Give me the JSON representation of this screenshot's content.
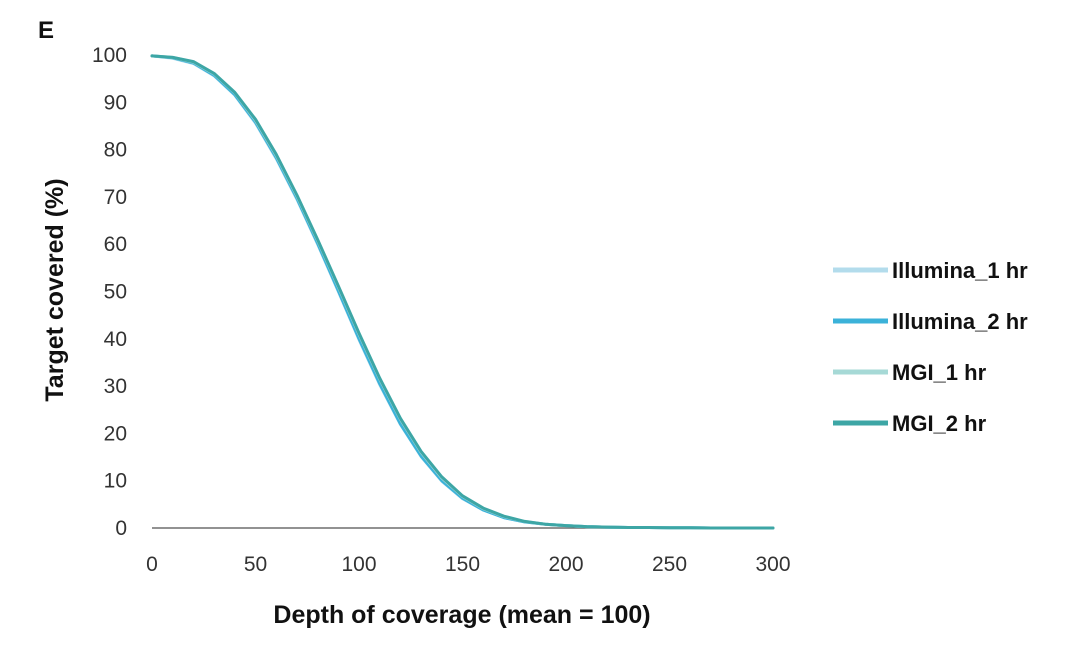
{
  "panel_label": "E",
  "chart_data": {
    "type": "line",
    "title": "",
    "xlabel": "Depth of coverage (mean = 100)",
    "ylabel": "Target covered (%)",
    "xlim": [
      0,
      300
    ],
    "ylim": [
      0,
      100
    ],
    "xticks": [
      "0",
      "50",
      "100",
      "150",
      "200",
      "250",
      "300"
    ],
    "yticks": [
      "0",
      "10",
      "20",
      "30",
      "40",
      "50",
      "60",
      "70",
      "80",
      "90",
      "100"
    ],
    "grid": false,
    "legend_position": "right",
    "x": [
      0,
      10,
      20,
      30,
      40,
      50,
      60,
      70,
      80,
      90,
      100,
      110,
      120,
      130,
      140,
      150,
      160,
      170,
      180,
      190,
      200,
      210,
      220,
      230,
      240,
      250,
      260,
      270,
      280,
      290,
      300
    ],
    "series": [
      {
        "name": "Illumina_1 hr",
        "color": "#b3dcec",
        "values": [
          99.8,
          99.3,
          98.2,
          95.6,
          91.5,
          85.6,
          78.1,
          69.5,
          60.0,
          50.0,
          39.8,
          30.3,
          21.9,
          15.1,
          9.9,
          6.2,
          3.8,
          2.2,
          1.3,
          0.8,
          0.5,
          0.3,
          0.2,
          0.1,
          0.1,
          0.05,
          0.05,
          0.0,
          0.0,
          0.0,
          0.0
        ]
      },
      {
        "name": "Illumina_2 hr",
        "color": "#3bb2d9",
        "values": [
          99.8,
          99.4,
          98.3,
          95.7,
          91.6,
          85.8,
          78.3,
          69.7,
          60.2,
          50.2,
          40.0,
          30.5,
          22.0,
          15.2,
          10.0,
          6.3,
          3.8,
          2.2,
          1.3,
          0.8,
          0.5,
          0.3,
          0.2,
          0.1,
          0.1,
          0.05,
          0.05,
          0.0,
          0.0,
          0.0,
          0.0
        ]
      },
      {
        "name": "MGI_1 hr",
        "color": "#a6d9d6",
        "values": [
          99.8,
          99.5,
          98.5,
          96.0,
          92.0,
          86.2,
          78.8,
          70.2,
          60.8,
          51.0,
          41.0,
          31.5,
          23.0,
          16.0,
          10.6,
          6.7,
          4.1,
          2.4,
          1.4,
          0.8,
          0.5,
          0.3,
          0.2,
          0.1,
          0.1,
          0.05,
          0.05,
          0.0,
          0.0,
          0.0,
          0.0
        ]
      },
      {
        "name": "MGI_2 hr",
        "color": "#3da6a5",
        "values": [
          99.8,
          99.5,
          98.6,
          96.1,
          92.1,
          86.4,
          79.0,
          70.4,
          61.0,
          51.2,
          41.2,
          31.7,
          23.2,
          16.2,
          10.8,
          6.8,
          4.2,
          2.5,
          1.4,
          0.8,
          0.5,
          0.3,
          0.2,
          0.1,
          0.1,
          0.05,
          0.05,
          0.0,
          0.0,
          0.0,
          0.0
        ]
      }
    ]
  }
}
